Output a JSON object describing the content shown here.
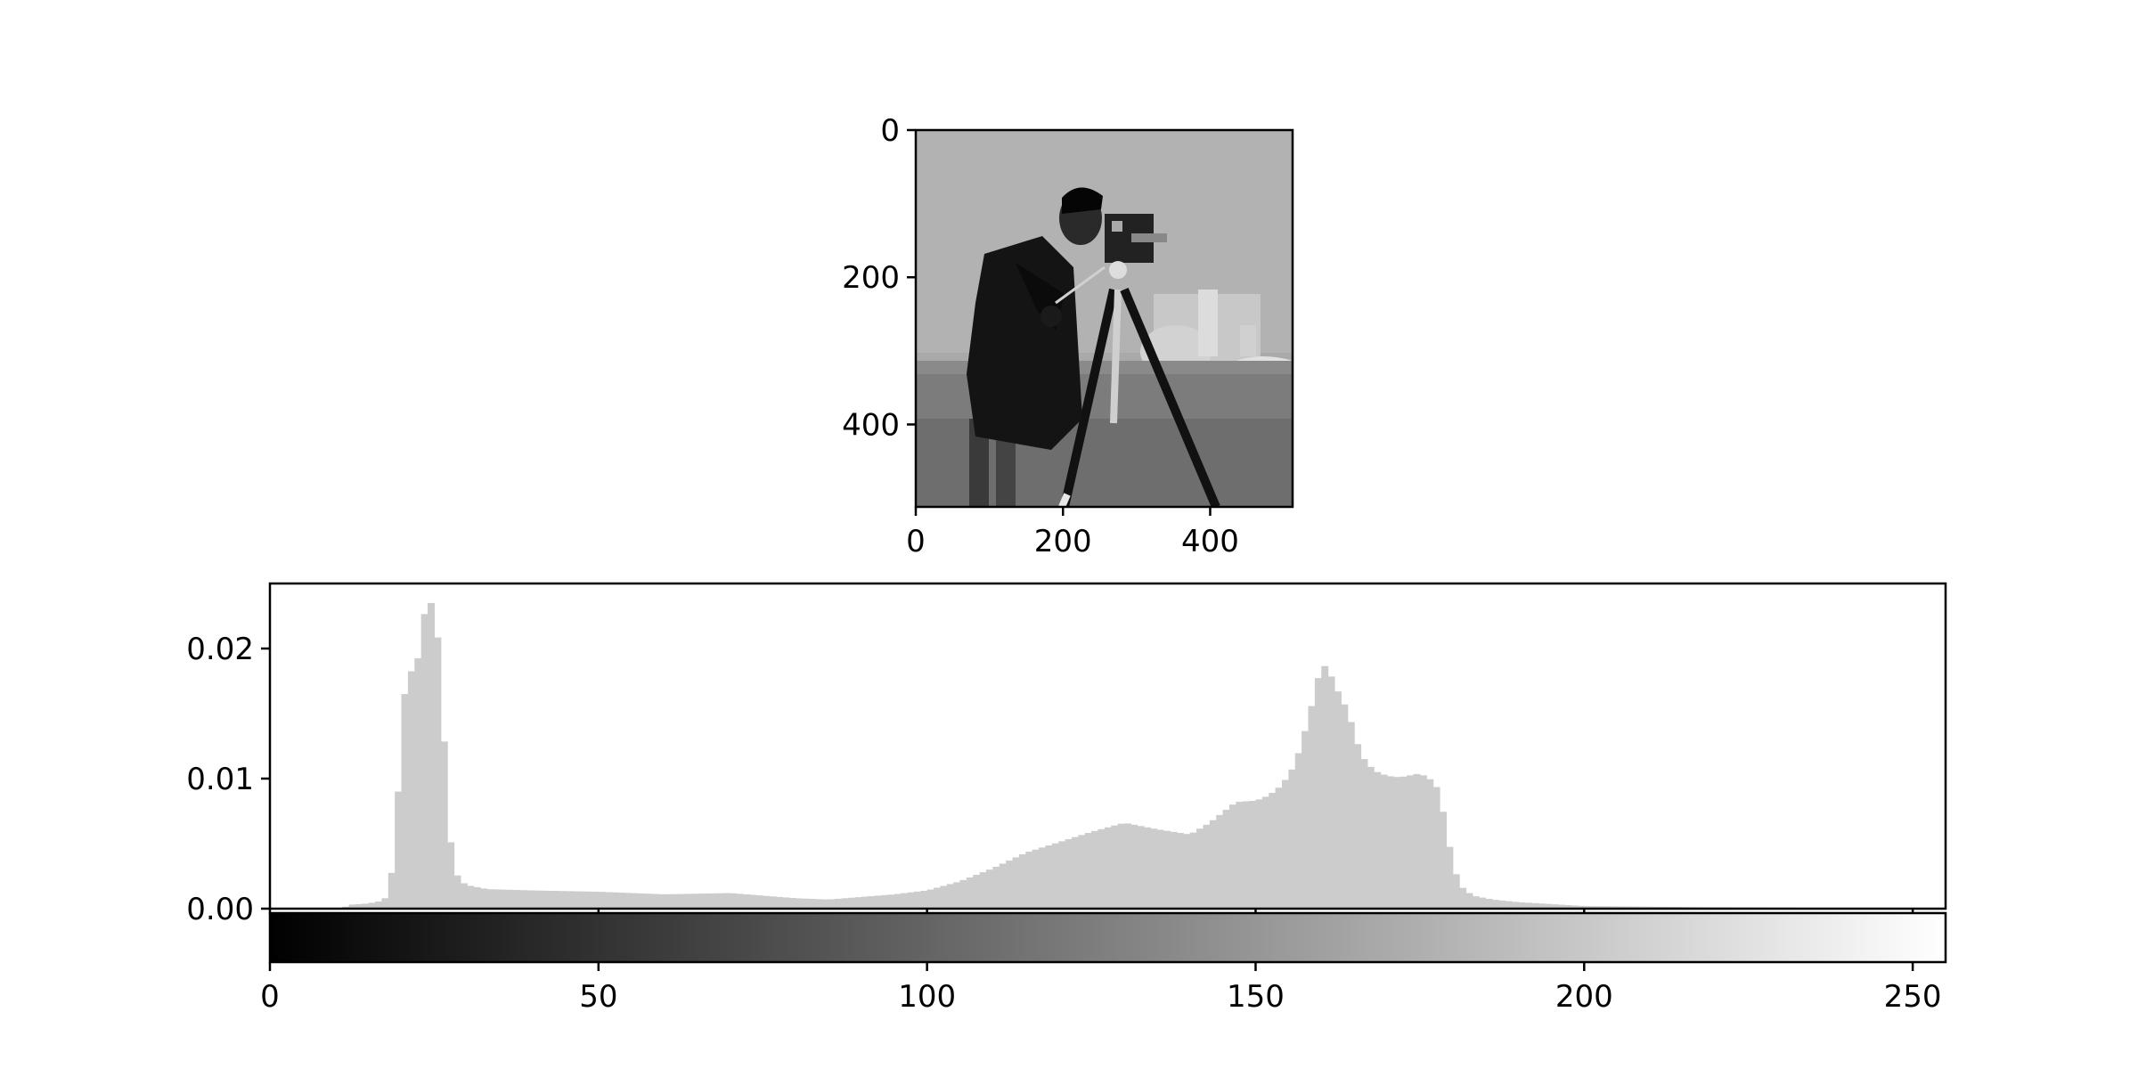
{
  "chart_data": [
    {
      "type": "image",
      "image_description": "grayscale photograph of a man operating a movie camera on a tripod, buildings in the background",
      "image_size": [
        512,
        512
      ],
      "xlim": [
        0,
        512
      ],
      "ylim": [
        512,
        0
      ],
      "xticks": [
        0,
        200,
        400
      ],
      "yticks": [
        0,
        200,
        400
      ],
      "x_tick_labels": [
        "0",
        "200",
        "400"
      ],
      "y_tick_labels": [
        "0",
        "200",
        "400"
      ],
      "colormap": "gray"
    },
    {
      "type": "bar",
      "title": "",
      "xlabel": "",
      "ylabel": "",
      "xlim": [
        0,
        255
      ],
      "ylim": [
        0,
        0.025
      ],
      "yticks": [
        0.0,
        0.01,
        0.02
      ],
      "y_tick_labels": [
        "0.00",
        "0.01",
        "0.02"
      ],
      "bar_color": "#cccccc",
      "profile": [
        [
          0,
          0
        ],
        [
          11,
          0
        ],
        [
          12,
          0.0003
        ],
        [
          15,
          0.0004
        ],
        [
          17,
          0.0006
        ],
        [
          18,
          0.001
        ],
        [
          19,
          0.0045
        ],
        [
          20,
          0.0135
        ],
        [
          21,
          0.0195
        ],
        [
          22,
          0.017
        ],
        [
          23,
          0.0215
        ],
        [
          24,
          0.0238
        ],
        [
          25,
          0.0232
        ],
        [
          26,
          0.0185
        ],
        [
          27,
          0.0072
        ],
        [
          28,
          0.003
        ],
        [
          29,
          0.0021
        ],
        [
          30,
          0.0018
        ],
        [
          33,
          0.0015
        ],
        [
          40,
          0.0014
        ],
        [
          50,
          0.0013
        ],
        [
          60,
          0.0011
        ],
        [
          70,
          0.0012
        ],
        [
          80,
          0.0008
        ],
        [
          85,
          0.0007
        ],
        [
          90,
          0.0009
        ],
        [
          95,
          0.0011
        ],
        [
          100,
          0.0014
        ],
        [
          105,
          0.0021
        ],
        [
          110,
          0.0031
        ],
        [
          115,
          0.0043
        ],
        [
          120,
          0.0051
        ],
        [
          125,
          0.0059
        ],
        [
          130,
          0.0066
        ],
        [
          135,
          0.0061
        ],
        [
          140,
          0.0057
        ],
        [
          143,
          0.0066
        ],
        [
          147,
          0.0082
        ],
        [
          150,
          0.0083
        ],
        [
          152,
          0.0087
        ],
        [
          154,
          0.0095
        ],
        [
          156,
          0.0111
        ],
        [
          158,
          0.0145
        ],
        [
          160,
          0.0188
        ],
        [
          161,
          0.0185
        ],
        [
          162,
          0.0172
        ],
        [
          164,
          0.0152
        ],
        [
          166,
          0.0118
        ],
        [
          168,
          0.0106
        ],
        [
          170,
          0.0102
        ],
        [
          172,
          0.0101
        ],
        [
          175,
          0.0104
        ],
        [
          177,
          0.0098
        ],
        [
          178,
          0.0089
        ],
        [
          179,
          0.006
        ],
        [
          180,
          0.0035
        ],
        [
          181,
          0.0018
        ],
        [
          183,
          0.001
        ],
        [
          186,
          0.0007
        ],
        [
          190,
          0.0005
        ],
        [
          200,
          0.0002
        ],
        [
          220,
          0.0001
        ],
        [
          240,
          5e-05
        ],
        [
          255,
          0
        ]
      ]
    },
    {
      "type": "colorbar",
      "colormap": "gray",
      "range": [
        0,
        255
      ],
      "xticks": [
        0,
        50,
        100,
        150,
        200,
        250
      ],
      "x_tick_labels": [
        "0",
        "50",
        "100",
        "150",
        "200",
        "250"
      ]
    }
  ]
}
